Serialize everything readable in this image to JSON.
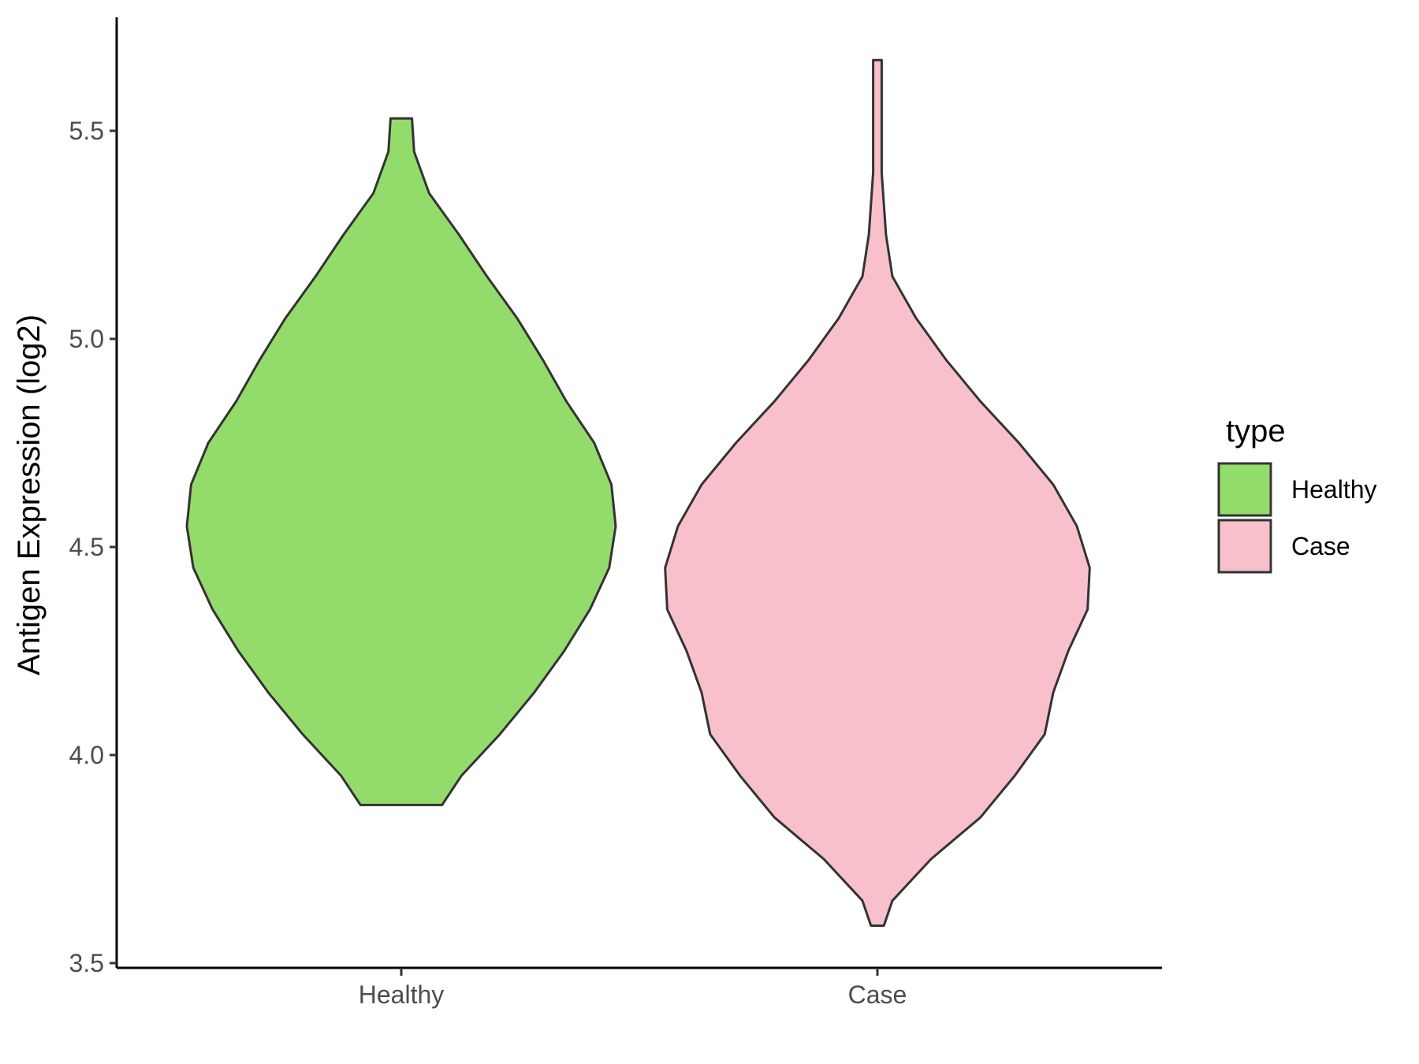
{
  "chart_data": {
    "type": "violin",
    "title": "",
    "xlabel": "",
    "ylabel": "Antigen Expression (log2)",
    "ylim": [
      3.5,
      5.75
    ],
    "y_ticks": [
      "3.5",
      "4.0",
      "4.5",
      "5.0",
      "5.5"
    ],
    "categories": [
      "Healthy",
      "Case"
    ],
    "grid": false,
    "legend": {
      "title": "type",
      "placement": "right",
      "entries": [
        {
          "label": "Healthy",
          "color": "#93DC6B"
        },
        {
          "label": "Case",
          "color": "#F8C0CB"
        }
      ]
    },
    "series": [
      {
        "name": "Healthy",
        "color": "#93DC6B",
        "min": 3.88,
        "max": 5.53,
        "density_profile": [
          [
            3.88,
            0.19
          ],
          [
            3.95,
            0.28
          ],
          [
            4.05,
            0.46
          ],
          [
            4.15,
            0.62
          ],
          [
            4.25,
            0.76
          ],
          [
            4.35,
            0.88
          ],
          [
            4.45,
            0.97
          ],
          [
            4.55,
            1.0
          ],
          [
            4.65,
            0.98
          ],
          [
            4.75,
            0.9
          ],
          [
            4.85,
            0.77
          ],
          [
            4.95,
            0.66
          ],
          [
            5.05,
            0.54
          ],
          [
            5.15,
            0.4
          ],
          [
            5.25,
            0.27
          ],
          [
            5.35,
            0.13
          ],
          [
            5.45,
            0.06
          ],
          [
            5.53,
            0.05
          ]
        ]
      },
      {
        "name": "Case",
        "color": "#F8C0CB",
        "min": 3.59,
        "max": 5.67,
        "density_profile": [
          [
            3.59,
            0.03
          ],
          [
            3.65,
            0.07
          ],
          [
            3.75,
            0.25
          ],
          [
            3.85,
            0.48
          ],
          [
            3.95,
            0.64
          ],
          [
            4.05,
            0.78
          ],
          [
            4.15,
            0.82
          ],
          [
            4.25,
            0.89
          ],
          [
            4.35,
            0.98
          ],
          [
            4.45,
            0.99
          ],
          [
            4.55,
            0.93
          ],
          [
            4.65,
            0.82
          ],
          [
            4.75,
            0.66
          ],
          [
            4.85,
            0.48
          ],
          [
            4.95,
            0.32
          ],
          [
            5.05,
            0.18
          ],
          [
            5.15,
            0.07
          ],
          [
            5.25,
            0.04
          ],
          [
            5.4,
            0.02
          ],
          [
            5.5,
            0.02
          ],
          [
            5.6,
            0.02
          ],
          [
            5.67,
            0.02
          ]
        ]
      }
    ]
  }
}
